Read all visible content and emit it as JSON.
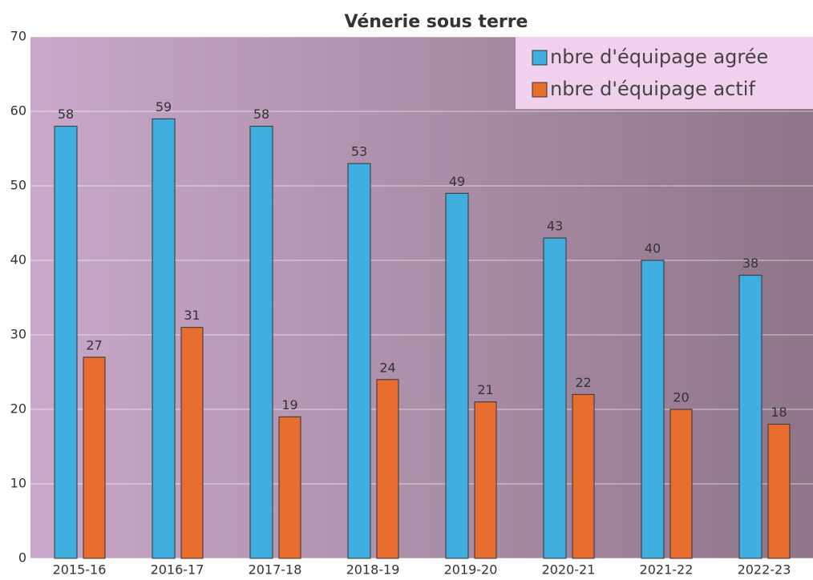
{
  "chart_data": {
    "type": "bar",
    "title": "Vénerie sous terre",
    "categories": [
      "2015-16",
      "2016-17",
      "2017-18",
      "2018-19",
      "2019-20",
      "2020-21",
      "2021-22",
      "2022-23"
    ],
    "series": [
      {
        "name": "nbre d'équipage agrée",
        "color": "#41aee0",
        "values": [
          58,
          59,
          58,
          53,
          49,
          43,
          40,
          38
        ]
      },
      {
        "name": "nbre d'équipage actif",
        "color": "#e86e30",
        "values": [
          27,
          31,
          19,
          24,
          21,
          22,
          20,
          18
        ]
      }
    ],
    "ylim": [
      0,
      70
    ],
    "yticks": [
      0,
      10,
      20,
      30,
      40,
      50,
      60,
      70
    ],
    "grid": true,
    "legend": "upper right"
  }
}
